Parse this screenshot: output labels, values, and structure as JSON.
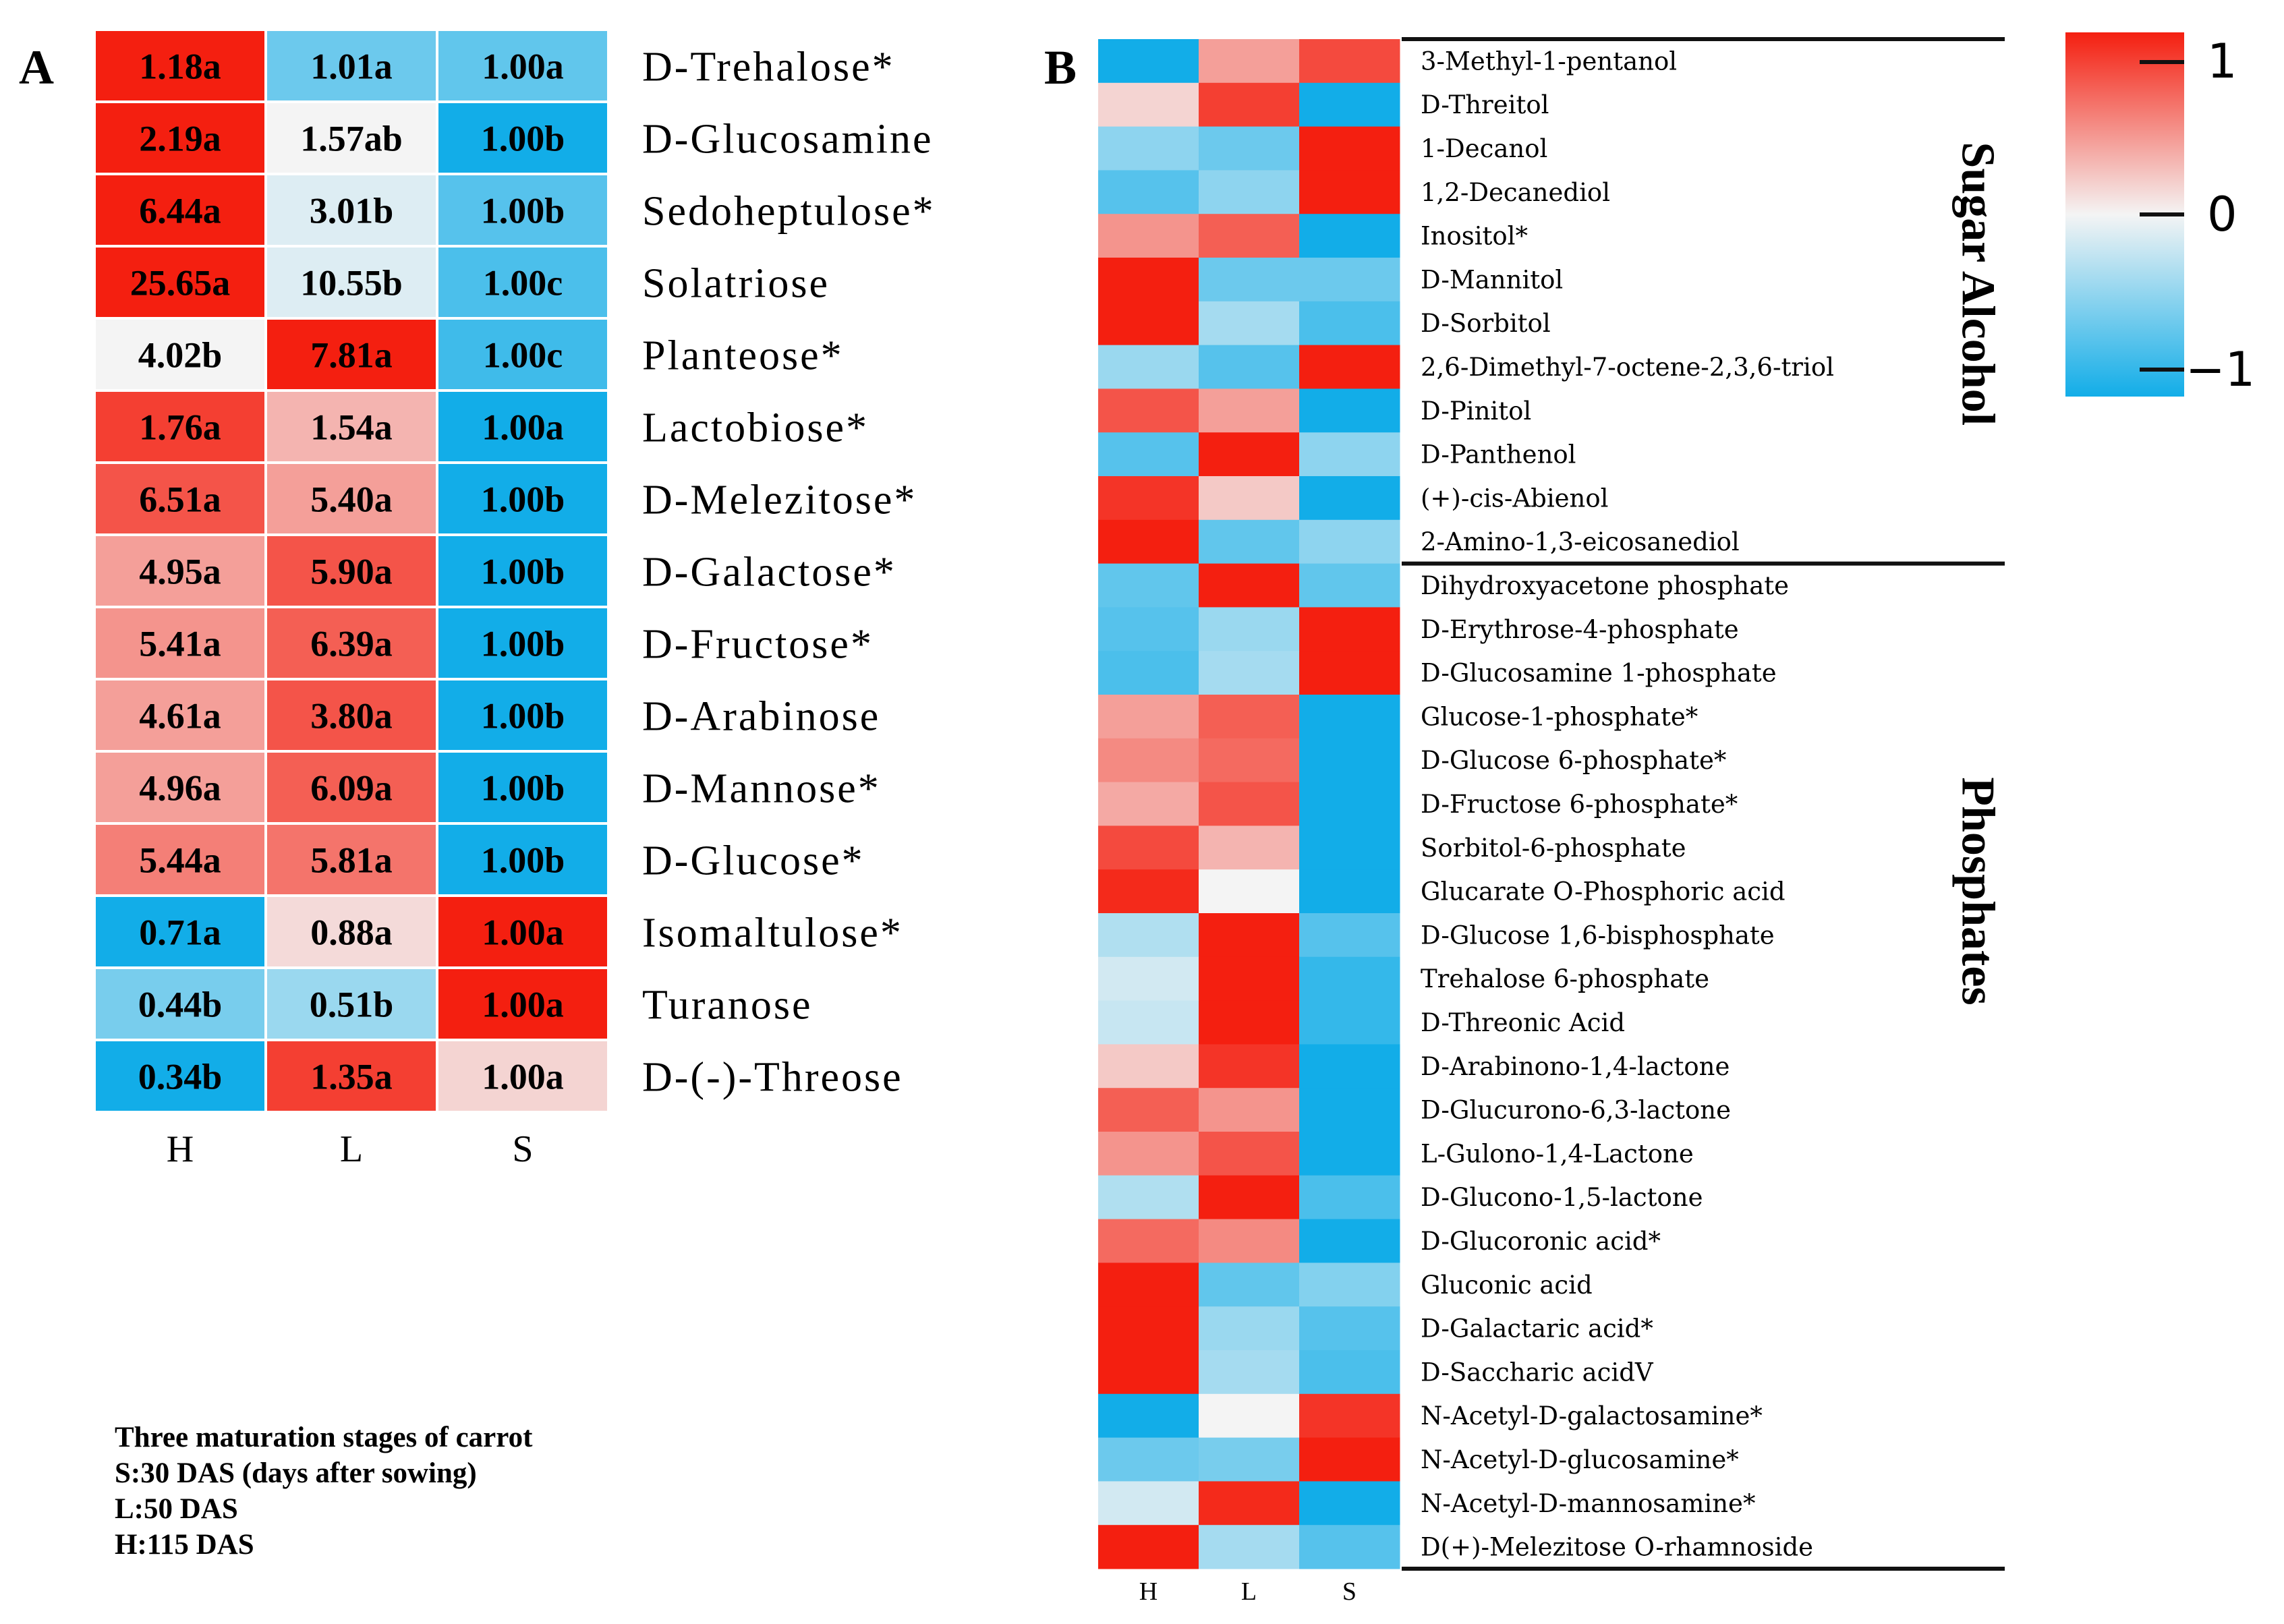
{
  "panel_letters": [
    "A",
    "B"
  ],
  "legend_note": {
    "lines": [
      "Three maturation stages of carrot",
      "S:30 DAS (days after sowing)",
      "L:50 DAS",
      "H:115 DAS"
    ]
  },
  "chart_data": [
    {
      "type": "heatmap",
      "panel": "A",
      "columns": [
        "H",
        "L",
        "S"
      ],
      "rows": [
        "D-Trehalose*",
        "D-Glucosamine",
        "Sedoheptulose*",
        "Solatriose",
        "Planteose*",
        "Lactobiose*",
        "D-Melezitose*",
        "D-Galactose*",
        "D-Fructose*",
        "D-Arabinose",
        "D-Mannose*",
        "D-Glucose*",
        "Isomaltulose*",
        "Turanose",
        "D-(-)-Threose"
      ],
      "cell_labels": [
        [
          "1.18a",
          "1.01a",
          "1.00a"
        ],
        [
          "2.19a",
          "1.57ab",
          "1.00b"
        ],
        [
          "6.44a",
          "3.01b",
          "1.00b"
        ],
        [
          "25.65a",
          "10.55b",
          "1.00c"
        ],
        [
          "4.02b",
          "7.81a",
          "1.00c"
        ],
        [
          "1.76a",
          "1.54a",
          "1.00a"
        ],
        [
          "6.51a",
          "5.40a",
          "1.00b"
        ],
        [
          "4.95a",
          "5.90a",
          "1.00b"
        ],
        [
          "5.41a",
          "6.39a",
          "1.00b"
        ],
        [
          "4.61a",
          "3.80a",
          "1.00b"
        ],
        [
          "4.96a",
          "6.09a",
          "1.00b"
        ],
        [
          "5.44a",
          "5.81a",
          "1.00b"
        ],
        [
          "0.71a",
          "0.88a",
          "1.00a"
        ],
        [
          "0.44b",
          "0.51b",
          "1.00a"
        ],
        [
          "0.34b",
          "1.35a",
          "1.00a"
        ]
      ],
      "z": [
        [
          1.0,
          -0.6,
          -0.65
        ],
        [
          1.0,
          0.0,
          -1.0
        ],
        [
          1.0,
          -0.1,
          -0.7
        ],
        [
          1.0,
          -0.1,
          -0.75
        ],
        [
          0.0,
          1.0,
          -0.8
        ],
        [
          0.85,
          0.3,
          -1.0
        ],
        [
          0.75,
          0.4,
          -1.0
        ],
        [
          0.4,
          0.75,
          -1.0
        ],
        [
          0.45,
          0.7,
          -1.0
        ],
        [
          0.4,
          0.75,
          -1.0
        ],
        [
          0.4,
          0.7,
          -1.0
        ],
        [
          0.55,
          0.6,
          -1.0
        ],
        [
          -1.0,
          0.12,
          1.0
        ],
        [
          -0.55,
          -0.4,
          1.0
        ],
        [
          -1.0,
          0.85,
          0.15
        ]
      ],
      "color_scale": {
        "low": "#12ade8",
        "mid": "#f4f4f4",
        "high": "#f41f10"
      }
    },
    {
      "type": "heatmap",
      "panel": "B",
      "columns": [
        "H",
        "L",
        "S"
      ],
      "rows": [
        "3-Methyl-1-pentanol",
        "D-Threitol",
        "1-Decanol",
        "1,2-Decanediol",
        "Inositol*",
        "D-Mannitol",
        "D-Sorbitol",
        "2,6-Dimethyl-7-octene-2,3,6-triol",
        "D-Pinitol",
        "D-Panthenol",
        "(+)-cis-Abienol",
        "2-Amino-1,3-eicosanediol",
        "Dihydroxyacetone phosphate",
        "D-Erythrose-4-phosphate",
        "D-Glucosamine 1-phosphate",
        "Glucose-1-phosphate*",
        "D-Glucose 6-phosphate*",
        "D-Fructose 6-phosphate*",
        "Sorbitol-6-phosphate",
        "Glucarate O-Phosphoric acid",
        "D-Glucose 1,6-bisphosphate",
        "Trehalose 6-phosphate",
        "D-Threonic Acid",
        "D-Arabinono-1,4-lactone",
        "D-Glucurono-6,3-lactone",
        "L-Gulono-1,4-Lactone",
        "D-Glucono-1,5-lactone",
        "D-Glucoronic acid*",
        "Gluconic acid",
        "D-Galactaric acid*",
        "D-Saccharic acidV",
        "N-Acetyl-D-galactosamine*",
        "N-Acetyl-D-glucosamine*",
        "N-Acetyl-D-mannosamine*",
        "D(+)-Melezitose O-rhamnoside"
      ],
      "groups": [
        {
          "name": "Sugar Alcohol",
          "rows": 12
        },
        {
          "name": "Phosphates",
          "rows": 23
        }
      ],
      "z": [
        [
          -1.0,
          0.4,
          0.8
        ],
        [
          0.15,
          0.85,
          -1.0
        ],
        [
          -0.45,
          -0.6,
          1.0
        ],
        [
          -0.7,
          -0.45,
          1.0
        ],
        [
          0.45,
          0.7,
          -1.0
        ],
        [
          1.0,
          -0.6,
          -0.6
        ],
        [
          1.0,
          -0.35,
          -0.75
        ],
        [
          -0.4,
          -0.7,
          1.0
        ],
        [
          0.75,
          0.4,
          -1.0
        ],
        [
          -0.7,
          1.0,
          -0.45
        ],
        [
          0.9,
          0.2,
          -1.0
        ],
        [
          1.0,
          -0.65,
          -0.45
        ],
        [
          -0.65,
          1.0,
          -0.65
        ],
        [
          -0.7,
          -0.4,
          1.0
        ],
        [
          -0.75,
          -0.35,
          1.0
        ],
        [
          0.4,
          0.7,
          -1.0
        ],
        [
          0.5,
          0.65,
          -1.0
        ],
        [
          0.35,
          0.75,
          -1.0
        ],
        [
          0.8,
          0.3,
          -1.0
        ],
        [
          0.95,
          0.0,
          -1.0
        ],
        [
          -0.3,
          1.0,
          -0.7
        ],
        [
          -0.15,
          1.0,
          -0.85
        ],
        [
          -0.2,
          1.0,
          -0.85
        ],
        [
          0.2,
          0.9,
          -1.0
        ],
        [
          0.7,
          0.45,
          -1.0
        ],
        [
          0.45,
          0.75,
          -1.0
        ],
        [
          -0.3,
          1.0,
          -0.75
        ],
        [
          0.65,
          0.5,
          -1.0
        ],
        [
          1.0,
          -0.65,
          -0.5
        ],
        [
          1.0,
          -0.4,
          -0.7
        ],
        [
          1.0,
          -0.35,
          -0.75
        ],
        [
          -1.0,
          0.0,
          0.9
        ],
        [
          -0.6,
          -0.55,
          1.0
        ],
        [
          -0.15,
          0.95,
          -1.0
        ],
        [
          1.0,
          -0.35,
          -0.7
        ]
      ],
      "colorbar": {
        "ticks": [
          "1",
          "0",
          "−1"
        ],
        "range": [
          -1,
          1
        ]
      },
      "color_scale": {
        "low": "#12ade8",
        "mid": "#f4f4f4",
        "high": "#f41f10"
      }
    }
  ]
}
